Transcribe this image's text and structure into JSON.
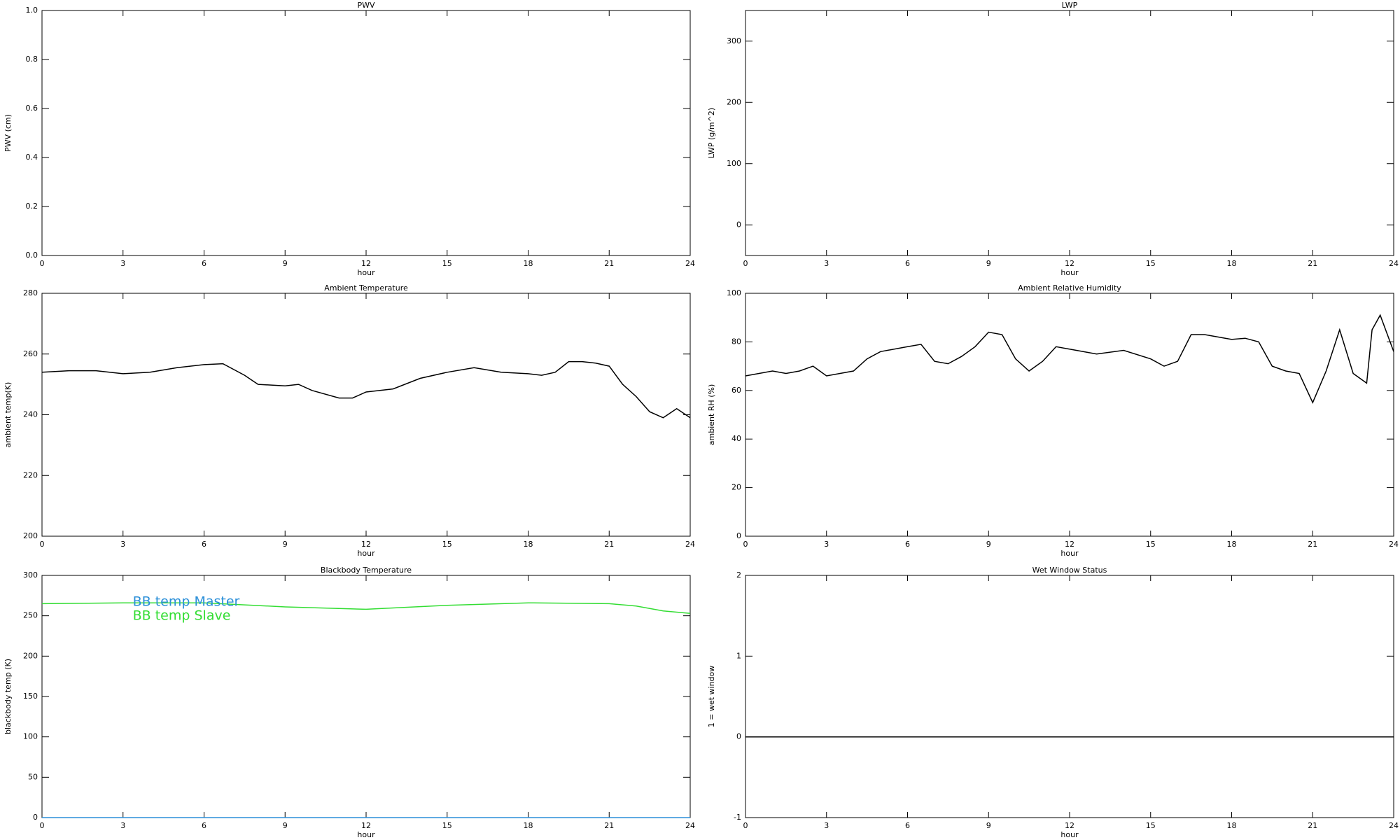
{
  "chart_data": [
    {
      "type": "line",
      "title": "PWV",
      "xlabel": "hour",
      "ylabel": "PWV (cm)",
      "xlim": [
        0,
        24
      ],
      "xticks": [
        0,
        3,
        6,
        9,
        12,
        15,
        18,
        21,
        24
      ],
      "ylim": [
        0,
        1
      ],
      "yticks": [
        {
          "value": 0,
          "label": "0.0"
        },
        0.2,
        0.4,
        0.6,
        0.8,
        {
          "value": 1,
          "label": "1.0"
        }
      ],
      "grid": false,
      "x": [],
      "series": []
    },
    {
      "type": "line",
      "title": "LWP",
      "xlabel": "hour",
      "ylabel": "LWP (g/m^2)",
      "xlim": [
        0,
        24
      ],
      "xticks": [
        0,
        3,
        6,
        9,
        12,
        15,
        18,
        21,
        24
      ],
      "ylim": [
        -50,
        350
      ],
      "yticks": [
        0,
        100,
        200,
        300
      ],
      "grid": false,
      "x": [],
      "series": []
    },
    {
      "type": "line",
      "title": "Ambient Temperature",
      "xlabel": "hour",
      "ylabel": "ambient temp(K)",
      "xlim": [
        0,
        24
      ],
      "xticks": [
        0,
        3,
        6,
        9,
        12,
        15,
        18,
        21,
        24
      ],
      "ylim": [
        200,
        280
      ],
      "yticks": [
        200,
        220,
        240,
        260,
        280
      ],
      "grid": false,
      "x": [
        0,
        1,
        2,
        3,
        4,
        5,
        6,
        6.7,
        7.5,
        8,
        9,
        9.5,
        10,
        11,
        11.5,
        12,
        13,
        14,
        15,
        16,
        17,
        18,
        18.5,
        19,
        19.5,
        20,
        20.5,
        21,
        21.5,
        22,
        22.5,
        23,
        23.5,
        24
      ],
      "series": [
        {
          "color": "#000000",
          "values": [
            254,
            254.5,
            254.5,
            253.5,
            254,
            255.5,
            256.5,
            256.8,
            253,
            250,
            249.5,
            250,
            248,
            245.5,
            245.5,
            247.5,
            248.5,
            252,
            254,
            255.5,
            254,
            253.5,
            253,
            254,
            257.5,
            257.5,
            257,
            256,
            250,
            246,
            241,
            239,
            242,
            239
          ]
        }
      ]
    },
    {
      "type": "line",
      "title": "Ambient Relative Humidity",
      "xlabel": "hour",
      "ylabel": "ambient RH (%)",
      "xlim": [
        0,
        24
      ],
      "xticks": [
        0,
        3,
        6,
        9,
        12,
        15,
        18,
        21,
        24
      ],
      "ylim": [
        0,
        100
      ],
      "yticks": [
        0,
        20,
        40,
        60,
        80,
        100
      ],
      "grid": false,
      "x": [
        0,
        1,
        1.5,
        2,
        2.5,
        3,
        4,
        4.5,
        5,
        6,
        6.5,
        7,
        7.5,
        8,
        8.5,
        9,
        9.5,
        10,
        10.5,
        11,
        11.5,
        12,
        13,
        14,
        15,
        15.5,
        16,
        16.5,
        17,
        18,
        18.5,
        19,
        19.5,
        20,
        20.5,
        21,
        21.5,
        22,
        22.5,
        23,
        23.2,
        23.5,
        24
      ],
      "series": [
        {
          "color": "#000000",
          "values": [
            66,
            68,
            67,
            68,
            70,
            66,
            68,
            73,
            76,
            78,
            79,
            72,
            71,
            74,
            78,
            84,
            83,
            73,
            68,
            72,
            78,
            77,
            75,
            76.5,
            73,
            70,
            72,
            83,
            83,
            81,
            81.5,
            80,
            70,
            68,
            67,
            55,
            68,
            85,
            67,
            63,
            85,
            91,
            76
          ]
        }
      ]
    },
    {
      "type": "line",
      "title": "Blackbody Temperature",
      "xlabel": "hour",
      "ylabel": "blackbody temp (K)",
      "xlim": [
        0,
        24
      ],
      "xticks": [
        0,
        3,
        6,
        9,
        12,
        15,
        18,
        21,
        24
      ],
      "ylim": [
        0,
        300
      ],
      "yticks": [
        0,
        50,
        100,
        150,
        200,
        250,
        300
      ],
      "grid": false,
      "legend": "upper left",
      "x": [
        0,
        3,
        6,
        9,
        12,
        15,
        18,
        21,
        22,
        23,
        24
      ],
      "series": [
        {
          "name": "BB temp Master",
          "color": "#2b8fd8",
          "values": [
            0,
            0,
            0,
            0,
            0,
            0,
            0,
            0,
            0,
            0,
            0
          ]
        },
        {
          "name": "BB temp Slave",
          "color": "#33dd33",
          "values": [
            265,
            266,
            266,
            261,
            258,
            263,
            266,
            265,
            262,
            256,
            253
          ]
        }
      ]
    },
    {
      "type": "line",
      "title": "Wet Window Status",
      "xlabel": "hour",
      "ylabel": "1 = wet window",
      "xlim": [
        0,
        24
      ],
      "xticks": [
        0,
        3,
        6,
        9,
        12,
        15,
        18,
        21,
        24
      ],
      "ylim": [
        -1,
        2
      ],
      "yticks": [
        -1,
        0,
        1,
        2
      ],
      "grid": false,
      "x": [
        0,
        24
      ],
      "series": [
        {
          "color": "#000000",
          "values": [
            0,
            0
          ]
        }
      ]
    }
  ]
}
